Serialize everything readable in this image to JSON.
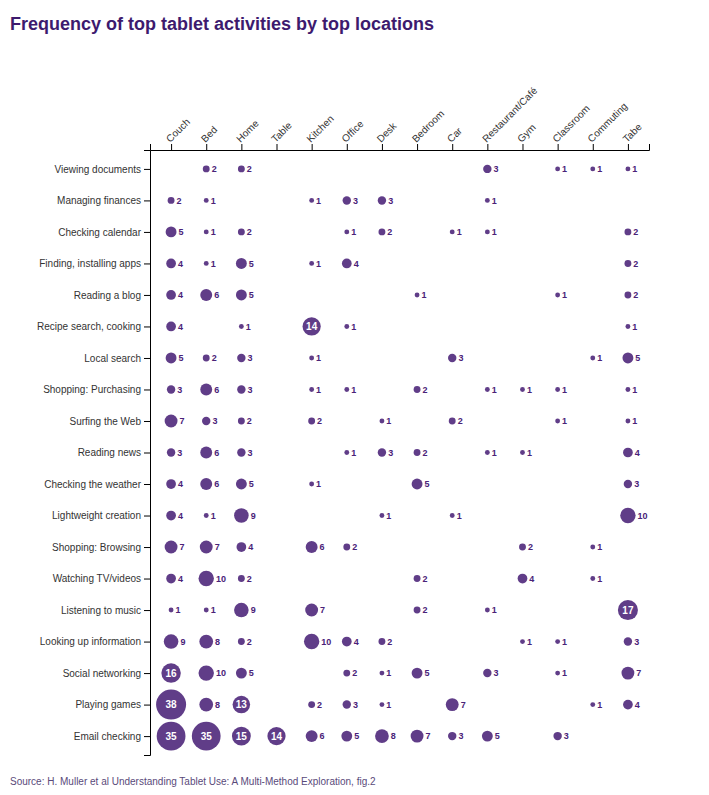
{
  "chart_data": {
    "type": "bubble",
    "title": "Frequency of top tablet activities by top locations",
    "source": "Source: H. Muller et al Understanding Tablet Use: A Multi-Method Exploration, fig.2",
    "categories": [
      "Couch",
      "Bed",
      "Home",
      "Table",
      "Kitchen",
      "Office",
      "Desk",
      "Bedroom",
      "Car",
      "Restaurant/Café",
      "Gym",
      "Classroom",
      "Commuting",
      "Tabe"
    ],
    "rows": [
      "Viewing documents",
      "Managing finances",
      "Checking calendar",
      "Finding, installing apps",
      "Reading a blog",
      "Recipe search, cooking",
      "Local search",
      "Shopping: Purchasing",
      "Surfing the Web",
      "Reading news",
      "Checking the weather",
      "Lightweight creation",
      "Shopping: Browsing",
      "Watching TV/videos",
      "Listening to music",
      "Looking up information",
      "Social networking",
      "Playing games",
      "Email checking"
    ],
    "values": [
      [
        0,
        2,
        2,
        0,
        0,
        0,
        0,
        0,
        0,
        3,
        0,
        1,
        1,
        1
      ],
      [
        2,
        1,
        0,
        0,
        1,
        3,
        3,
        0,
        0,
        1,
        0,
        0,
        0,
        0
      ],
      [
        5,
        1,
        2,
        0,
        0,
        1,
        2,
        0,
        1,
        1,
        0,
        0,
        0,
        2
      ],
      [
        4,
        1,
        5,
        0,
        1,
        4,
        0,
        0,
        0,
        0,
        0,
        0,
        0,
        2
      ],
      [
        4,
        6,
        5,
        0,
        0,
        0,
        0,
        1,
        0,
        0,
        0,
        1,
        0,
        2
      ],
      [
        4,
        0,
        1,
        0,
        14,
        1,
        0,
        0,
        0,
        0,
        0,
        0,
        0,
        1
      ],
      [
        5,
        2,
        3,
        0,
        1,
        0,
        0,
        0,
        3,
        0,
        0,
        0,
        1,
        5
      ],
      [
        3,
        6,
        3,
        0,
        1,
        1,
        0,
        2,
        0,
        1,
        1,
        1,
        0,
        1
      ],
      [
        7,
        3,
        2,
        0,
        2,
        0,
        1,
        0,
        2,
        0,
        0,
        1,
        0,
        1
      ],
      [
        3,
        6,
        3,
        0,
        0,
        1,
        3,
        2,
        0,
        1,
        1,
        0,
        0,
        4
      ],
      [
        4,
        6,
        5,
        0,
        1,
        0,
        0,
        5,
        0,
        0,
        0,
        0,
        0,
        3
      ],
      [
        4,
        1,
        9,
        0,
        0,
        0,
        1,
        0,
        1,
        0,
        0,
        0,
        0,
        10
      ],
      [
        7,
        7,
        4,
        0,
        6,
        2,
        0,
        0,
        0,
        0,
        2,
        0,
        1,
        0
      ],
      [
        4,
        10,
        2,
        0,
        0,
        0,
        0,
        2,
        0,
        0,
        4,
        0,
        1,
        0
      ],
      [
        1,
        1,
        9,
        0,
        7,
        0,
        0,
        2,
        0,
        1,
        0,
        0,
        0,
        17
      ],
      [
        9,
        8,
        2,
        0,
        10,
        4,
        2,
        0,
        0,
        0,
        1,
        1,
        0,
        3
      ],
      [
        16,
        10,
        5,
        0,
        0,
        2,
        1,
        5,
        0,
        3,
        0,
        1,
        0,
        7
      ],
      [
        38,
        8,
        13,
        0,
        2,
        3,
        1,
        0,
        7,
        0,
        0,
        0,
        1,
        4
      ],
      [
        35,
        35,
        15,
        14,
        6,
        5,
        8,
        7,
        3,
        5,
        0,
        3,
        0,
        0
      ]
    ],
    "size_max": 38,
    "color": "#4a2278",
    "data_labels": true,
    "grid": false
  }
}
